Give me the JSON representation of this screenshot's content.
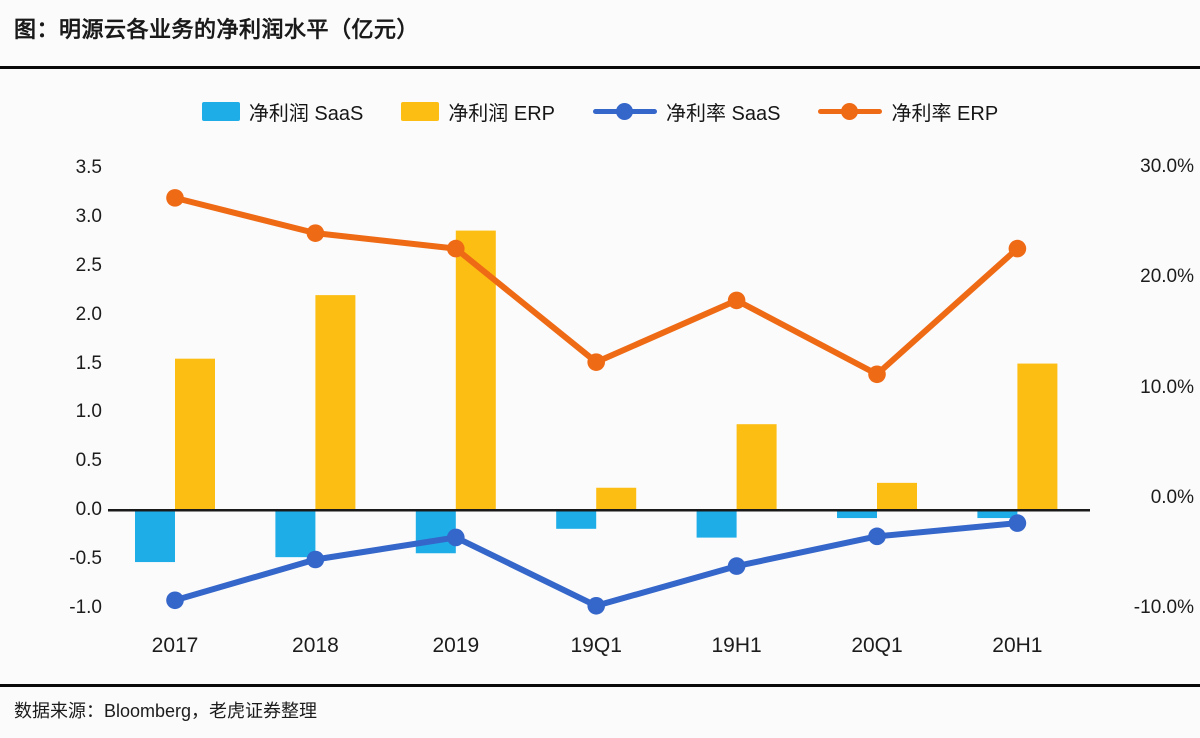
{
  "page": {
    "title": "图：明源云各业务的净利润水平（亿元）",
    "source": "数据来源：Bloomberg，老虎证券整理"
  },
  "colors": {
    "saas_bar": "#1fade8",
    "erp_bar": "#fdbe14",
    "saas_line": "#3566c9",
    "erp_line": "#ef6a14",
    "axis": "#1a1a1a",
    "background": "#fbfbfc"
  },
  "chart_data": {
    "type": "bar",
    "subtype": "combo-bar-line-dual-axis",
    "title": "图：明源云各业务的净利润水平（亿元）",
    "categories": [
      "2017",
      "2018",
      "2019",
      "19Q1",
      "19H1",
      "20Q1",
      "20H1"
    ],
    "series": [
      {
        "name": "净利润 SaaS",
        "type": "bar",
        "axis": "left",
        "color_key": "saas_bar",
        "values": [
          -0.53,
          -0.48,
          -0.44,
          -0.19,
          -0.28,
          -0.08,
          -0.08
        ]
      },
      {
        "name": "净利润 ERP",
        "type": "bar",
        "axis": "left",
        "color_key": "erp_bar",
        "values": [
          1.55,
          2.2,
          2.86,
          0.23,
          0.88,
          0.28,
          1.5
        ]
      },
      {
        "name": "净利率 SaaS",
        "type": "line",
        "axis": "right",
        "color_key": "saas_line",
        "values": [
          -9.3,
          -5.6,
          -3.6,
          -9.8,
          -6.2,
          -3.5,
          -2.3
        ]
      },
      {
        "name": "净利率 ERP",
        "type": "line",
        "axis": "right",
        "color_key": "erp_line",
        "values": [
          27.2,
          24.0,
          22.6,
          12.3,
          17.9,
          11.2,
          22.6
        ]
      }
    ],
    "left_axis": {
      "ticks": [
        "3.5",
        "3.0",
        "2.5",
        "2.0",
        "1.5",
        "1.0",
        "0.5",
        "0.0",
        "-0.5",
        "-1.0"
      ],
      "min": -1.0,
      "max": 3.5,
      "label": "亿元"
    },
    "right_axis": {
      "ticks": [
        "30.0%",
        "20.0%",
        "10.0%",
        "0.0%",
        "-10.0%"
      ],
      "min": -10.0,
      "max": 30.0,
      "label": "%"
    },
    "legend_position": "top",
    "grid": false
  }
}
